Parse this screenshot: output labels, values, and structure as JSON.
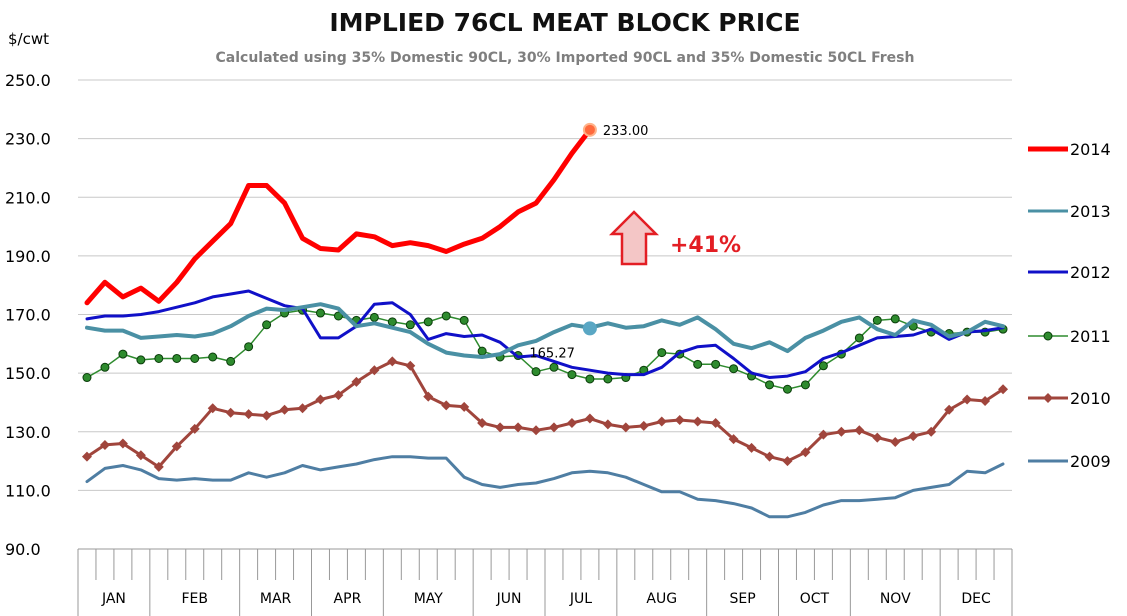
{
  "chart_data": {
    "type": "line",
    "title": "IMPLIED 76CL MEAT BLOCK PRICE",
    "subtitle": "Calculated using 35% Domestic 90CL, 30% Imported 90CL and 35% Domestic 50CL Fresh",
    "ylabel": "$/cwt",
    "ylim": [
      90,
      250
    ],
    "yticks": [
      "250.0",
      "230.0",
      "210.0",
      "190.0",
      "170.0",
      "150.0",
      "130.0",
      "110.0",
      "90.0"
    ],
    "months": [
      "JAN",
      "FEB",
      "MAR",
      "APR",
      "MAY",
      "JUN",
      "JUL",
      "AUG",
      "SEP",
      "OCT",
      "NOV",
      "DEC"
    ],
    "weeks_per_year": 52,
    "grid": "horizontal",
    "legend_position": "right",
    "series": [
      {
        "name": "2014",
        "color": "#ff0000",
        "marker": "none",
        "values": [
          174,
          181,
          176,
          179,
          174.5,
          181,
          189,
          195,
          201,
          214,
          214,
          208,
          196,
          192.5,
          192,
          197.5,
          196.5,
          193.5,
          194.5,
          193.5,
          191.5,
          194,
          196,
          200,
          205,
          208,
          216,
          225,
          233
        ]
      },
      {
        "name": "2013",
        "color": "#4a90a4",
        "marker": "none",
        "values": [
          165.5,
          164.5,
          164.5,
          162,
          162.5,
          163,
          162.5,
          163.5,
          166,
          169.5,
          172,
          171.5,
          172.5,
          173.5,
          172,
          166,
          167,
          165.5,
          164,
          160,
          157,
          156,
          155.5,
          156.5,
          159.5,
          161,
          164,
          166.5,
          165.5,
          167,
          165.5,
          166,
          168,
          166.5,
          169,
          165,
          160,
          158.5,
          160.5,
          157.5,
          162,
          164.5,
          167.5,
          169,
          165,
          163,
          168,
          166.5,
          162.5,
          164,
          167.5,
          166
        ]
      },
      {
        "name": "2012",
        "color": "#1010c8",
        "marker": "none",
        "values": [
          168.5,
          169.5,
          169.5,
          170,
          171,
          172.5,
          174,
          176,
          177,
          178,
          175.5,
          173,
          172,
          162,
          162,
          166,
          173.5,
          174,
          170,
          161.5,
          163.5,
          162.5,
          163,
          160.5,
          155.5,
          156,
          154,
          152,
          151,
          150,
          149.5,
          149.5,
          152,
          157,
          159,
          159.5,
          155,
          150,
          148.5,
          149,
          150.5,
          155,
          157,
          159.5,
          162,
          162.5,
          163,
          165,
          161.5,
          164,
          164.5,
          165.5
        ]
      },
      {
        "name": "2011",
        "color": "#2e8b2e",
        "marker": "dot",
        "values": [
          148.5,
          152,
          156.5,
          154.5,
          155,
          155,
          155,
          155.5,
          154,
          159,
          166.5,
          170.5,
          171.5,
          170.5,
          169.5,
          168,
          169,
          167.5,
          166.5,
          167.5,
          169.5,
          168,
          157.5,
          155.5,
          156,
          150.5,
          152,
          149.5,
          148,
          148,
          148.5,
          151,
          157,
          156.5,
          153,
          153,
          151.5,
          149,
          146,
          144.5,
          146,
          152.5,
          156.5,
          162,
          168,
          168.5,
          166,
          164,
          163.5,
          164,
          164,
          165
        ]
      },
      {
        "name": "2010",
        "color": "#a0453c",
        "marker": "diamond",
        "values": [
          121.5,
          125.5,
          126,
          122,
          118,
          125,
          131,
          138,
          136.5,
          136,
          135.5,
          137.5,
          138,
          141,
          142.5,
          147,
          151,
          154,
          152.5,
          142,
          139,
          138.5,
          133,
          131.5,
          131.5,
          130.5,
          131.5,
          133,
          134.5,
          132.5,
          131.5,
          132,
          133.5,
          134,
          133.5,
          133,
          127.5,
          124.5,
          121.5,
          120,
          123,
          129,
          130,
          130.5,
          128,
          126.5,
          128.5,
          130,
          137.5,
          141,
          140.5,
          144.5
        ]
      },
      {
        "name": "2009",
        "color": "#4f7ea3",
        "marker": "none",
        "values": [
          113,
          117.5,
          118.5,
          117,
          114,
          113.5,
          114,
          113.5,
          113.5,
          116,
          114.5,
          116,
          118.5,
          117,
          118,
          119,
          120.5,
          121.5,
          121.5,
          121,
          121,
          114.5,
          112,
          111,
          112,
          112.5,
          114,
          116,
          116.5,
          116,
          114.5,
          112,
          109.5,
          109.5,
          107,
          106.5,
          105.5,
          104,
          101,
          101,
          102.5,
          105,
          106.5,
          106.5,
          107,
          107.5,
          110,
          111,
          112,
          116.5,
          116,
          119
        ]
      }
    ],
    "annotations": [
      {
        "label": "233.00",
        "series": "2014",
        "week_index": 28,
        "value": 233
      },
      {
        "label": "165.27",
        "series": "2013",
        "week_index": 28,
        "value": 165.27
      },
      {
        "label": "+41%",
        "color": "#e31e24"
      }
    ]
  }
}
